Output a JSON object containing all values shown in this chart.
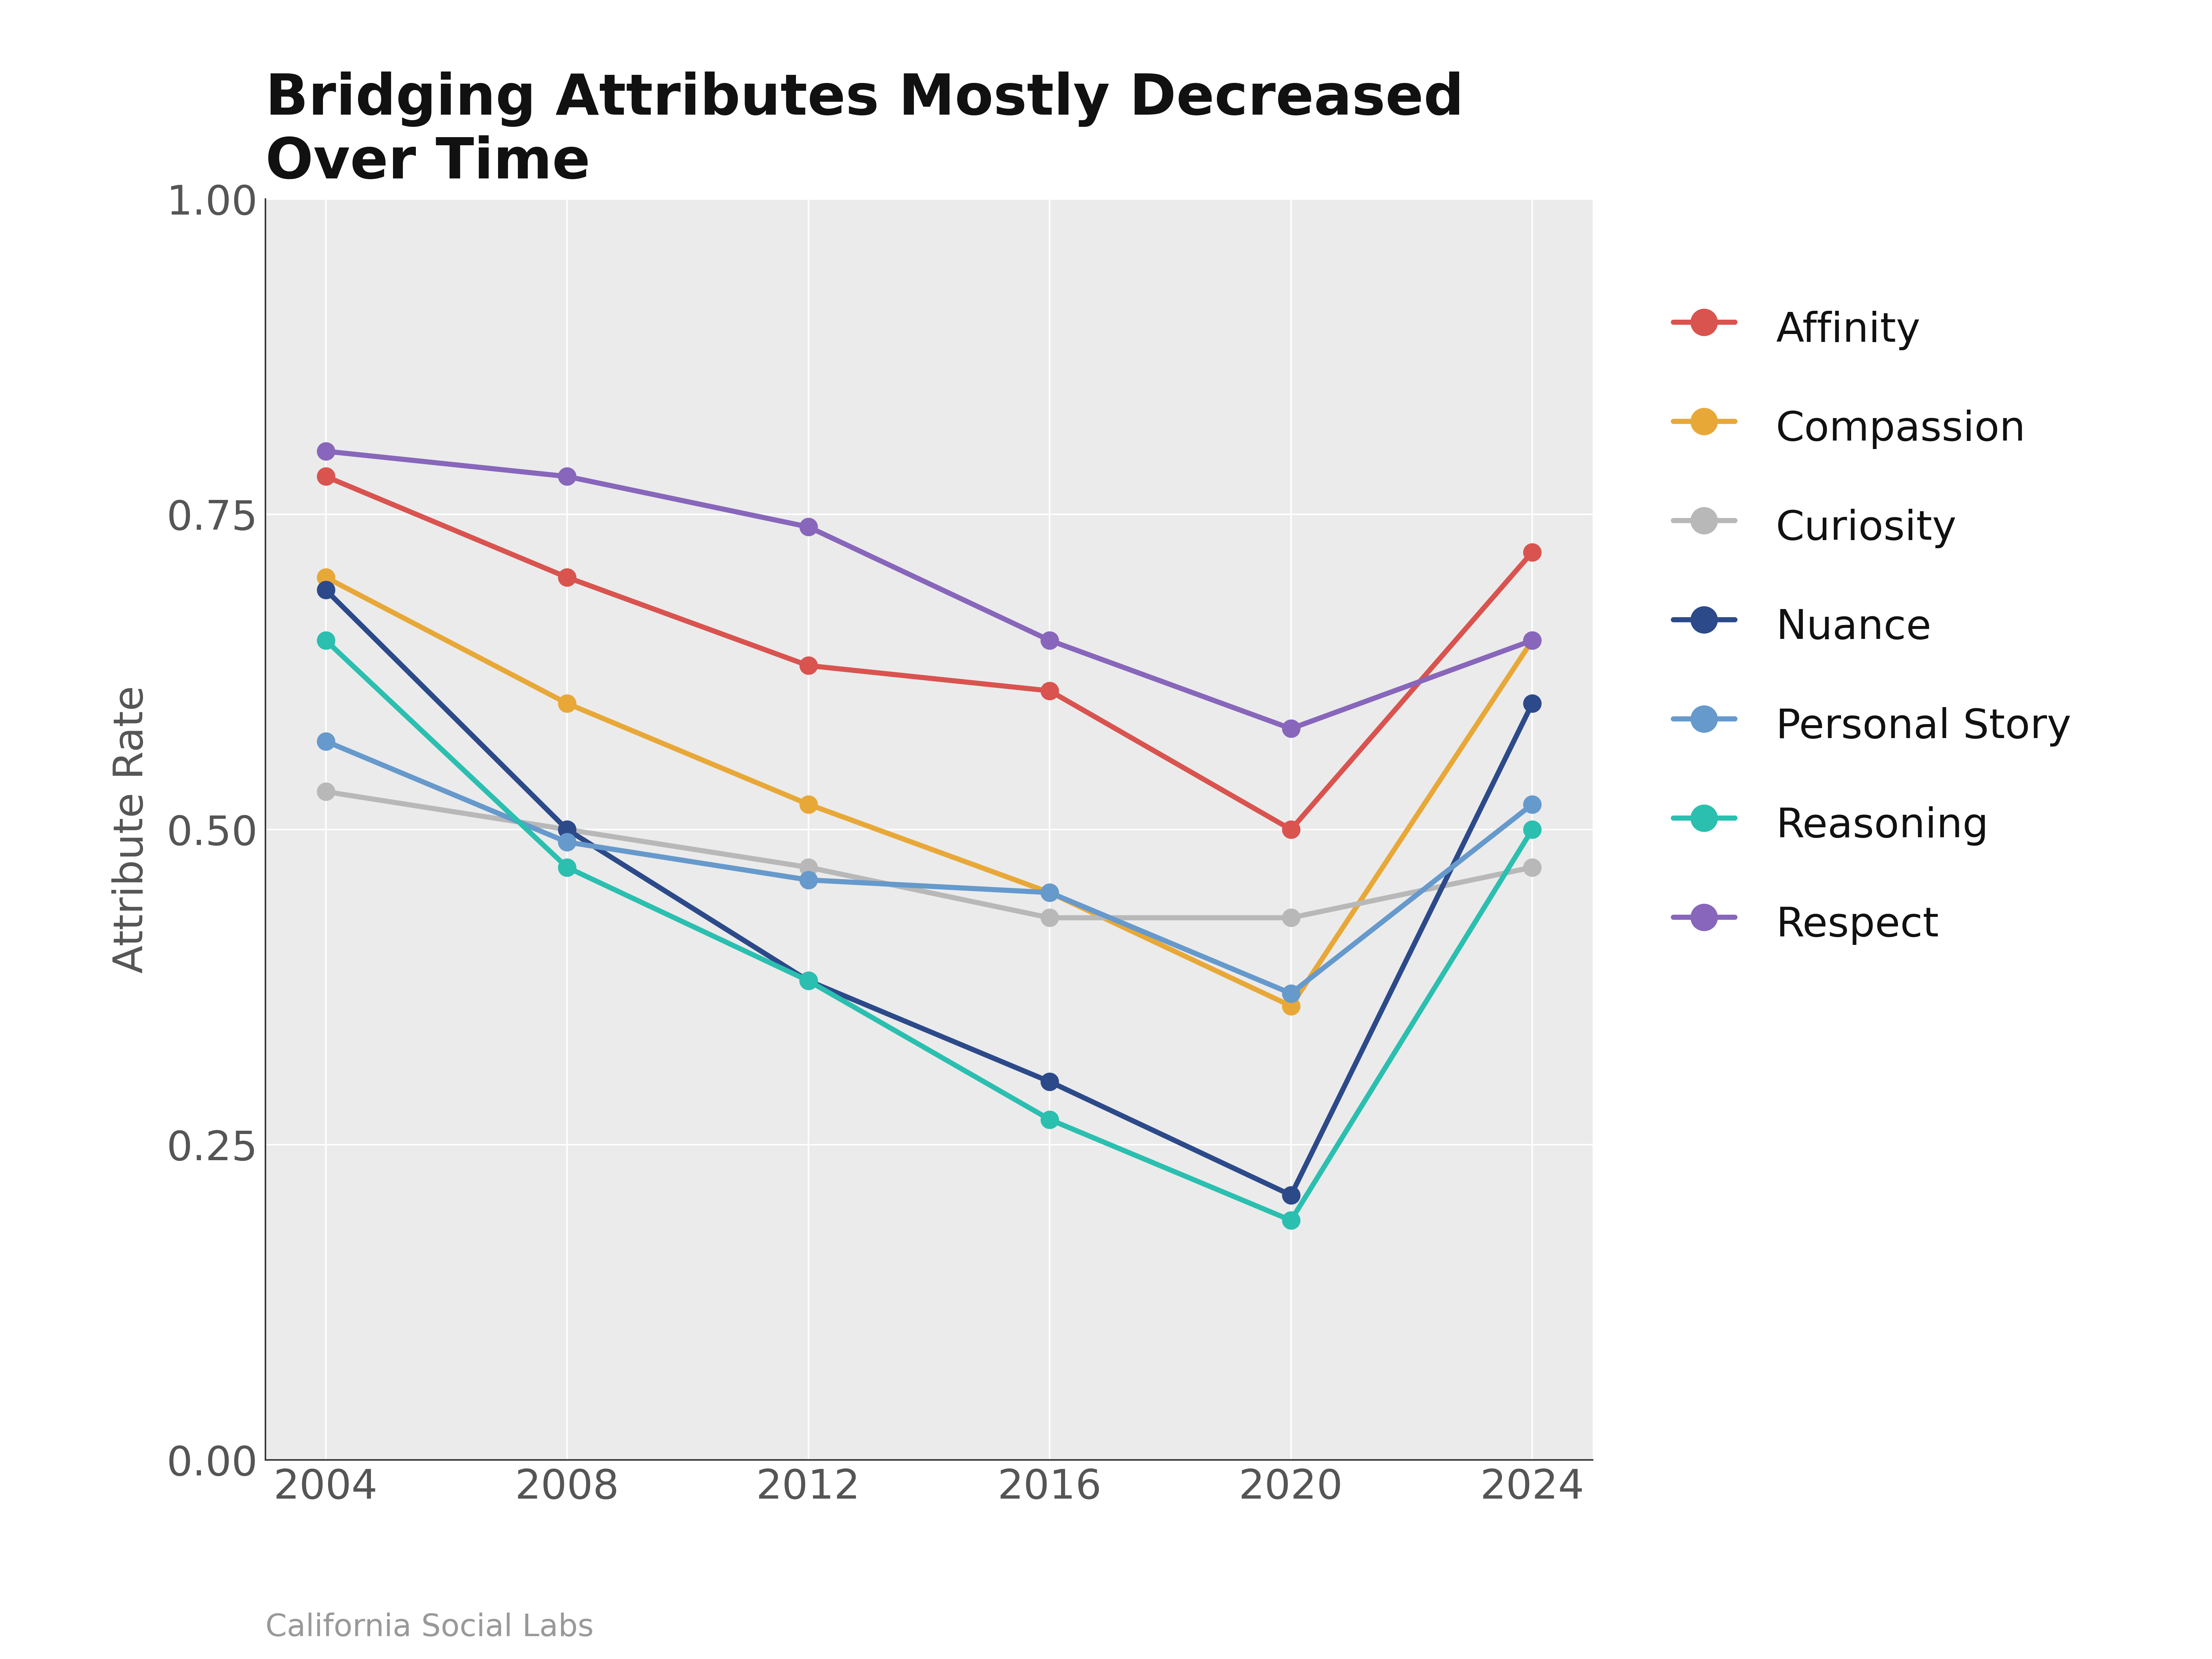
{
  "title": "Bridging Attributes Mostly Decreased\nOver Time",
  "xlabel": "",
  "ylabel": "Attribute Rate",
  "footnote": "California Social Labs",
  "years": [
    2004,
    2008,
    2012,
    2016,
    2020,
    2024
  ],
  "series": {
    "Affinity": [
      0.78,
      0.7,
      0.63,
      0.61,
      0.5,
      0.72
    ],
    "Compassion": [
      0.7,
      0.6,
      0.52,
      0.45,
      0.36,
      0.65
    ],
    "Curiosity": [
      0.53,
      0.5,
      0.47,
      0.43,
      0.43,
      0.47
    ],
    "Nuance": [
      0.69,
      0.5,
      0.38,
      0.3,
      0.21,
      0.6
    ],
    "Personal Story": [
      0.57,
      0.49,
      0.46,
      0.45,
      0.37,
      0.52
    ],
    "Reasoning": [
      0.65,
      0.47,
      0.38,
      0.27,
      0.19,
      0.5
    ],
    "Respect": [
      0.8,
      0.78,
      0.74,
      0.65,
      0.58,
      0.65
    ]
  },
  "colors": {
    "Affinity": "#d9534f",
    "Compassion": "#e8a838",
    "Curiosity": "#b8b8b8",
    "Nuance": "#2c4a8a",
    "Personal Story": "#6699cc",
    "Reasoning": "#2bbfb0",
    "Respect": "#8866bb"
  },
  "ylim": [
    0.0,
    1.0
  ],
  "yticks": [
    0.0,
    0.25,
    0.5,
    0.75,
    1.0
  ],
  "xticks": [
    2004,
    2008,
    2012,
    2016,
    2020,
    2024
  ],
  "background_color": "#ffffff",
  "plot_background": "#ebebeb",
  "grid_color": "#ffffff",
  "title_fontsize": 110,
  "label_fontsize": 80,
  "tick_fontsize": 80,
  "legend_fontsize": 80,
  "footnote_fontsize": 60,
  "linewidth": 10,
  "markersize": 35
}
